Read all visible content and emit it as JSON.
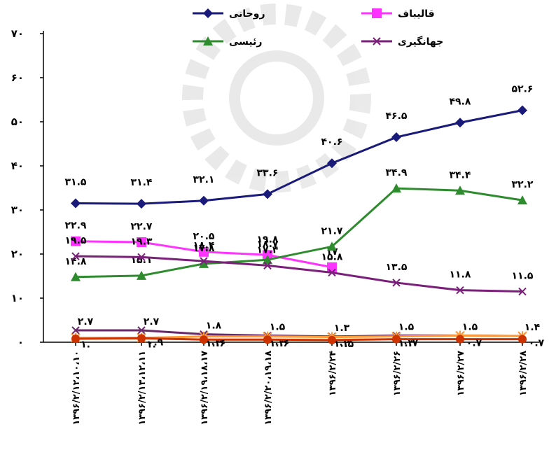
{
  "chart_data": {
    "type": "line",
    "categories": [
      "۱۳۹۶/۲/۱۲،۱۰،۱۰",
      "۱۳۹۶/۲/۱۳،۱۲،۱۱",
      "۱۳۹۶/۲/۱۹،۱۸،۱۷",
      "۱۳۹۶/۲/۲۰،۱۹،۱۸",
      "۱۳۹۶/۲/۲۴",
      "۱۳۹۶/۲/۲۶",
      "۱۳۹۶/۲/۲۷",
      "۱۳۹۶/۲/۲۸"
    ],
    "ylim": [
      0,
      70
    ],
    "yticks": [
      0,
      10,
      20,
      30,
      40,
      50,
      60,
      70
    ],
    "ytick_labels": [
      "۰",
      "۱۰",
      "۲۰",
      "۳۰",
      "۴۰",
      "۵۰",
      "۶۰",
      "۷۰"
    ],
    "legend_position": "top",
    "series": [
      {
        "name": "روحانی",
        "color": "#1a1a7a",
        "marker": "diamond",
        "values": [
          31.5,
          31.4,
          32.1,
          33.6,
          40.6,
          46.5,
          49.8,
          52.6
        ],
        "labels": [
          "۳۱.۵",
          "۳۱.۴",
          "۳۲.۱",
          "۳۳.۶",
          "۴۰.۶",
          "۴۶.۵",
          "۴۹.۸",
          "۵۲.۶"
        ]
      },
      {
        "name": "قالیباف",
        "color": "#ff33ff",
        "marker": "square",
        "values": [
          22.9,
          22.7,
          20.5,
          19.8,
          17.0,
          null,
          null,
          null
        ],
        "labels": [
          "۲۲.۹",
          "۲۲.۷",
          "۲۰.۵",
          "۱۹.۸",
          "۱۷",
          "",
          "",
          ""
        ]
      },
      {
        "name": "رئیسی",
        "color": "#2e8b2e",
        "marker": "triangle",
        "values": [
          14.8,
          15.1,
          17.8,
          18.7,
          21.7,
          34.9,
          34.4,
          32.2
        ],
        "labels": [
          "۱۴.۸",
          "۱۵.۱",
          "۱۷.۸",
          "۱۸.۷",
          "۲۱.۷",
          "۳۴.۹",
          "۳۴.۴",
          "۳۲.۲"
        ]
      },
      {
        "name": "جهانگیری",
        "color": "#7a1f7a",
        "marker": "x",
        "values": [
          19.5,
          19.3,
          18.4,
          17.4,
          15.8,
          13.5,
          11.8,
          11.5
        ],
        "labels": [
          "۱۹.۵",
          "۱۹.۳",
          "۱۸.۴",
          "۱۷.۴",
          "۱۵.۸",
          "۱۳.۵",
          "۱۱.۸",
          "۱۱.۵"
        ]
      },
      {
        "name": "",
        "color": "#6a2a6a",
        "marker": "x",
        "values": [
          2.7,
          2.7,
          1.8,
          1.5,
          1.3,
          1.5,
          1.5,
          1.4
        ],
        "labels": [
          "۲.۷",
          "۲.۷",
          "۱.۸",
          "۱.۵",
          "۱.۳",
          "۱.۵",
          "۱.۵",
          "۱.۴"
        ]
      },
      {
        "name": "",
        "color": "#ff9933",
        "marker": "asterisk",
        "values": [
          1.0,
          1.0,
          1.3,
          1.3,
          1.2,
          1.3,
          1.5,
          1.4
        ],
        "labels": [
          "۱.",
          "۱.",
          "۱.۳",
          "۱.۳",
          "۱.۲",
          "۱.۳",
          "",
          ""
        ]
      },
      {
        "name": "",
        "color": "#cc3300",
        "marker": "circle",
        "values": [
          0.8,
          0.9,
          0.6,
          0.6,
          0.5,
          0.7,
          0.7,
          0.7
        ],
        "labels": [
          "",
          "۰.۹",
          "۰.۶",
          "۰.۶",
          "۰.۵",
          "۰.۷",
          "۰.۷",
          "۰.۷"
        ]
      }
    ],
    "legend": [
      {
        "name": "روحانی",
        "color": "#1a1a7a",
        "marker": "diamond"
      },
      {
        "name": "قالیباف",
        "color": "#ff33ff",
        "marker": "square"
      },
      {
        "name": "رئیسی",
        "color": "#2e8b2e",
        "marker": "triangle"
      },
      {
        "name": "جهانگیری",
        "color": "#7a1f7a",
        "marker": "x"
      }
    ]
  }
}
